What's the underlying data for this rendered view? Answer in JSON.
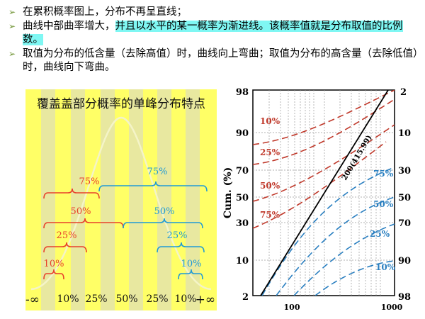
{
  "bullets": {
    "b1": "在累积概率图上，分布不再呈直线；",
    "b2_normal": "曲线中部曲率增大，",
    "b2_highlight": "并且以水平的某一概率为渐进线。该概率值就是分布取值的比例数。",
    "b3": "取值为分布的低含量（去除高值）时，曲线向上弯曲；取值为分布的高含量（去除低值）时，曲线向下弯曲。"
  },
  "panel": {
    "title": "覆盖盖部分概率的单峰分布特点",
    "red_labels": [
      "75%",
      "50%",
      "25%",
      "10%"
    ],
    "blue_labels": [
      "75%",
      "50%",
      "25%",
      "10%"
    ],
    "axis_labels": [
      "-∞",
      "10%",
      "25%",
      "50%",
      "25%",
      "10%",
      "+∞"
    ],
    "colors": {
      "background": "#ffff66",
      "stripe": "#e6e694",
      "red": "#e8402a",
      "blue": "#1f9ad6"
    }
  },
  "chart": {
    "left_ticks": [
      "98",
      "90",
      "70",
      "50",
      "30",
      "10",
      "2"
    ],
    "right_ticks": [
      "2",
      "10",
      "30",
      "50",
      "70",
      "90",
      "98"
    ],
    "bottom_ticks": [
      "100",
      "1000"
    ],
    "ylabel": "Cum. (%)",
    "line_label": "200(415.99)",
    "red_curve_labels": [
      "10%",
      "25%",
      "50%",
      "75%"
    ],
    "blue_curve_labels": [
      "75%",
      "50%",
      "25%",
      "10%"
    ],
    "colors": {
      "red": "#c0392b",
      "blue": "#2a7fc0",
      "line": "#000000"
    }
  }
}
